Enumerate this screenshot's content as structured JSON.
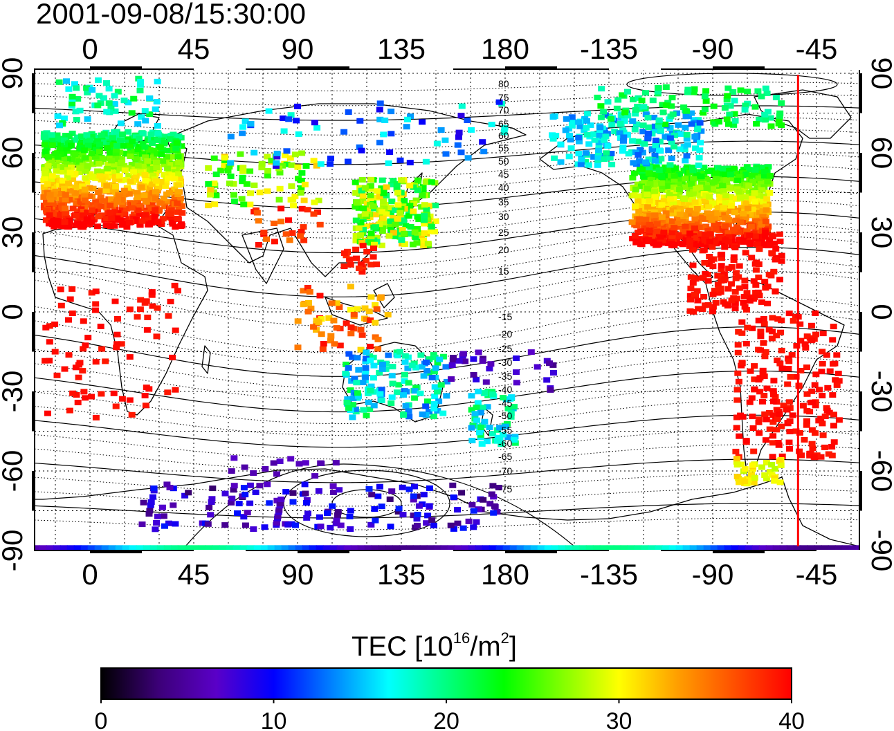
{
  "timestamp": "2001-09-08/15:30:00",
  "map": {
    "top_lon_ticks": [
      "0",
      "45",
      "90",
      "135",
      "180",
      "-135",
      "-90",
      "-45"
    ],
    "bottom_lon_ticks": [
      "0",
      "45",
      "90",
      "135",
      "180",
      "-135",
      "-90",
      "-45"
    ],
    "left_lat_ticks": [
      "90",
      "60",
      "30",
      "0",
      "-30",
      "-60",
      "-90"
    ],
    "right_lat_ticks": [
      "90",
      "60",
      "30",
      "0",
      "-30",
      "-60",
      "-90"
    ],
    "contour_labels_north": [
      "80",
      "75",
      "70",
      "65",
      "60",
      "55",
      "50",
      "45",
      "40",
      "35",
      "30",
      "25",
      "20",
      "15"
    ],
    "contour_labels_south": [
      "-15",
      "-20",
      "-25",
      "-30",
      "-35",
      "-40",
      "-45",
      "-50",
      "-55",
      "-60",
      "-65",
      "-70",
      "-75"
    ],
    "marker_line_lon": -53,
    "marker_line_color": "#ff0000"
  },
  "colorbar": {
    "title_prefix": "TEC  [10",
    "title_sup1": "16",
    "title_mid": "/m",
    "title_sup2": "2",
    "title_suffix": "]",
    "min": 0,
    "max": 40,
    "tick_labels": [
      "0",
      "10",
      "20",
      "30",
      "40"
    ],
    "colors": [
      "#000000",
      "#3c0078",
      "#5a00c8",
      "#0000ff",
      "#0080ff",
      "#00ffff",
      "#00ff80",
      "#00ff00",
      "#80ff00",
      "#ffff00",
      "#ffa000",
      "#ff5000",
      "#ff0000"
    ]
  }
}
